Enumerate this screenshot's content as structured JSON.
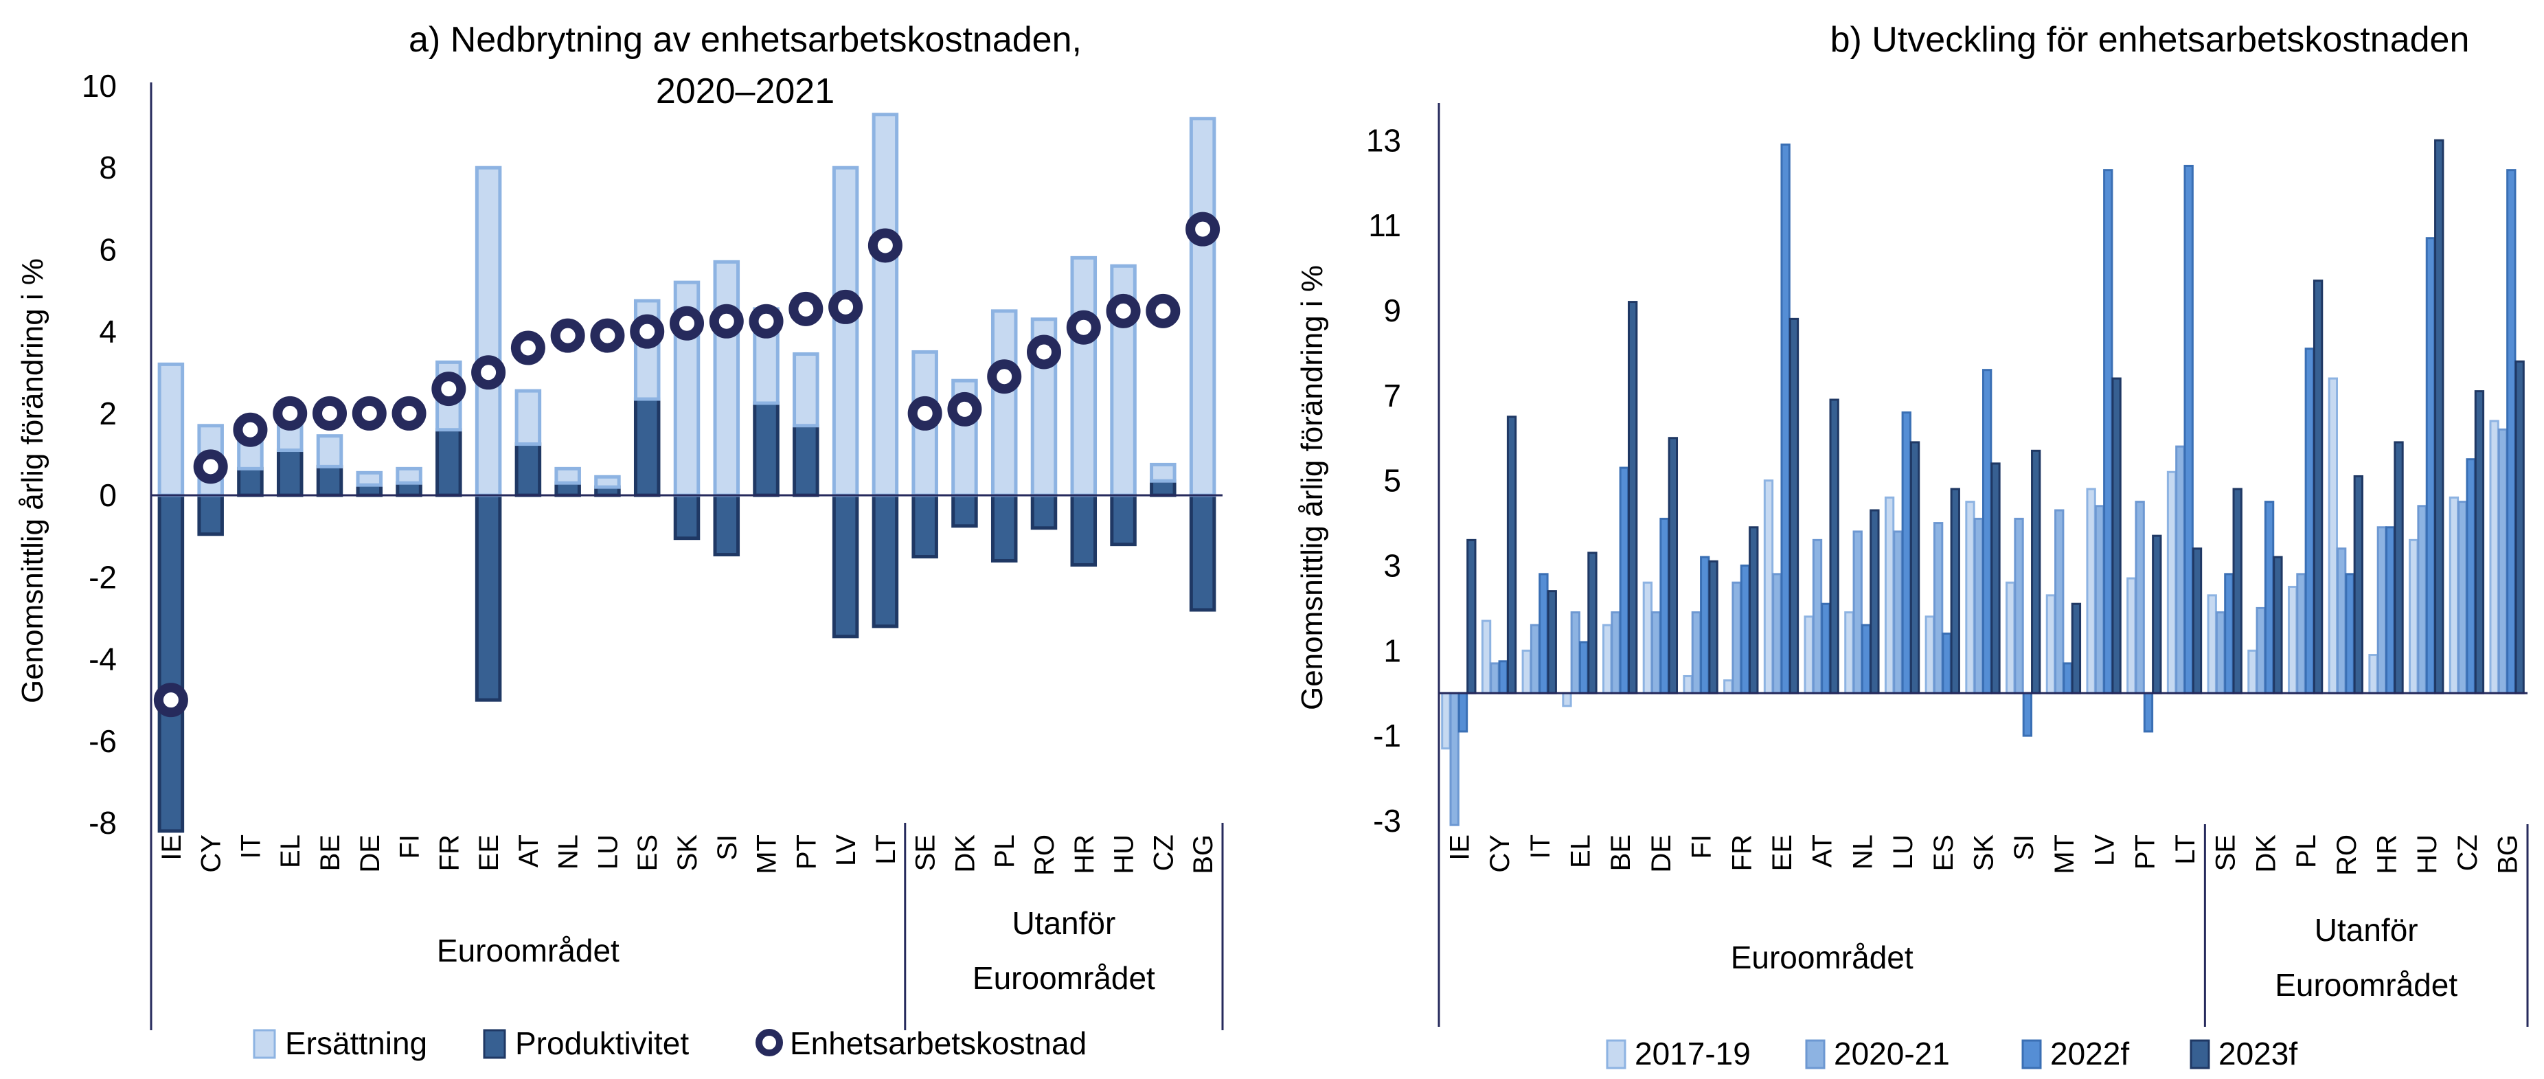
{
  "chart_data": [
    {
      "type": "bar",
      "subtype": "stacked-bar-with-markers",
      "title": "a) Nedbrytning av enhetsarbetskostnaden, 2020–2021",
      "title_lines": [
        "a) Nedbrytning av enhetsarbetskostnaden,",
        "2020–2021"
      ],
      "xlabel": "",
      "ylabel": "Genomsnittlig årlig förändring i %",
      "ylim": [
        -8,
        10
      ],
      "yticks": [
        -8,
        -6,
        -4,
        -2,
        0,
        2,
        4,
        6,
        8,
        10
      ],
      "ytick_labels": [
        "-8",
        "-6",
        "-4",
        "-2",
        "0",
        "2",
        "4",
        "6",
        "8",
        "10"
      ],
      "grid": false,
      "categories": [
        "IE",
        "CY",
        "IT",
        "EL",
        "BE",
        "DE",
        "FI",
        "FR",
        "EE",
        "AT",
        "NL",
        "LU",
        "ES",
        "SK",
        "SI",
        "MT",
        "PT",
        "LV",
        "LT",
        "SE",
        "DK",
        "PL",
        "RO",
        "HR",
        "HU",
        "CZ",
        "BG"
      ],
      "groups": [
        {
          "label": "Euroområdet",
          "label_lines": [
            "Euroområdet"
          ],
          "count": 19
        },
        {
          "label": "Utanför Euroområdet",
          "label_lines": [
            "Utanför",
            "Euroområdet"
          ],
          "count": 8
        }
      ],
      "series": [
        {
          "name": "Ersättning",
          "kind": "bar",
          "color": "#c6d9f1",
          "edge": "#8db3e2",
          "values": [
            3.2,
            1.7,
            0.7,
            1.1,
            0.75,
            0.3,
            0.35,
            1.65,
            8.0,
            1.3,
            0.35,
            0.25,
            2.4,
            5.2,
            5.7,
            2.3,
            1.75,
            8.0,
            9.3,
            3.5,
            2.8,
            4.5,
            4.3,
            5.8,
            5.6,
            0.4,
            9.2
          ]
        },
        {
          "name": "Produktivitet",
          "kind": "bar",
          "color": "#376092",
          "edge": "#1f3864",
          "values": [
            -8.2,
            -0.95,
            0.65,
            1.1,
            0.7,
            0.25,
            0.3,
            1.6,
            -5.0,
            1.25,
            0.3,
            0.2,
            2.35,
            -1.05,
            -1.45,
            2.25,
            1.7,
            -3.45,
            -3.2,
            -1.5,
            -0.75,
            -1.6,
            -0.8,
            -1.7,
            -1.2,
            0.35,
            -2.8
          ]
        },
        {
          "name": "Enhetsarbetskostnad",
          "kind": "marker",
          "color": "#262a5c",
          "values": [
            -5.0,
            0.7,
            1.6,
            2.0,
            2.0,
            2.0,
            2.0,
            2.6,
            3.0,
            3.6,
            3.9,
            3.9,
            4.0,
            4.2,
            4.25,
            4.25,
            4.55,
            4.6,
            6.1,
            2.0,
            2.1,
            2.9,
            3.5,
            4.1,
            4.5,
            4.5,
            6.5
          ]
        }
      ],
      "legend": [
        "Ersättning",
        "Produktivitet",
        "Enhetsarbetskostnad"
      ],
      "legend_position": "bottom"
    },
    {
      "type": "bar",
      "subtype": "grouped-bar",
      "title": "b) Utveckling för enhetsarbetskostnaden",
      "title_lines": [
        "b) Utveckling för enhetsarbetskostnaden"
      ],
      "xlabel": "",
      "ylabel": "Genomsnittlig årlig förändring i %",
      "ylim": [
        -3,
        14.2
      ],
      "yticks": [
        -3,
        -1,
        1,
        3,
        5,
        7,
        9,
        11,
        13
      ],
      "ytick_labels": [
        "-3",
        "-1",
        "1",
        "3",
        "5",
        "7",
        "9",
        "11",
        "13"
      ],
      "grid": false,
      "categories": [
        "IE",
        "CY",
        "IT",
        "EL",
        "BE",
        "DE",
        "FI",
        "FR",
        "EE",
        "AT",
        "NL",
        "LU",
        "ES",
        "SK",
        "SI",
        "MT",
        "LV",
        "PT",
        "LT",
        "SE",
        "DK",
        "PL",
        "RO",
        "HR",
        "HU",
        "CZ",
        "BG"
      ],
      "groups": [
        {
          "label": "Euroområdet",
          "label_lines": [
            "Euroområdet"
          ],
          "count": 19
        },
        {
          "label": "Utanför Euroområdet",
          "label_lines": [
            "Utanför",
            "Euroområdet"
          ],
          "count": 8
        }
      ],
      "series": [
        {
          "name": "2017-19",
          "color": "#c6d9f1",
          "edge": "#8db3e2",
          "values": [
            -1.3,
            1.7,
            1.0,
            -0.3,
            1.6,
            2.6,
            0.4,
            0.3,
            5.0,
            1.8,
            1.9,
            4.6,
            1.8,
            4.5,
            2.6,
            2.3,
            4.8,
            2.7,
            5.2,
            2.3,
            1.0,
            2.5,
            7.4,
            0.9,
            3.6,
            4.6,
            6.4
          ]
        },
        {
          "name": "2020-21",
          "color": "#8db3e2",
          "edge": "#6d98d2",
          "values": [
            -3.1,
            0.7,
            1.6,
            1.9,
            1.9,
            1.9,
            1.9,
            2.6,
            2.8,
            3.6,
            3.8,
            3.8,
            4.0,
            4.1,
            4.1,
            4.3,
            4.4,
            4.5,
            5.8,
            1.9,
            2.0,
            2.8,
            3.4,
            3.9,
            4.4,
            4.5,
            6.2
          ]
        },
        {
          "name": "2022f",
          "color": "#558ed5",
          "edge": "#3a6fb4",
          "values": [
            -0.9,
            0.75,
            2.8,
            1.2,
            5.3,
            4.1,
            3.2,
            3.0,
            12.9,
            2.1,
            1.6,
            6.6,
            1.4,
            7.6,
            -1.0,
            0.7,
            12.3,
            -0.9,
            12.4,
            2.8,
            4.5,
            8.1,
            2.8,
            3.9,
            10.7,
            5.5,
            12.3
          ]
        },
        {
          "name": "2023f",
          "color": "#376092",
          "edge": "#1f3864",
          "values": [
            3.6,
            6.5,
            2.4,
            3.3,
            9.2,
            6.0,
            3.1,
            3.9,
            8.8,
            6.9,
            4.3,
            5.9,
            4.8,
            5.4,
            5.7,
            2.1,
            7.4,
            3.7,
            3.4,
            4.8,
            3.2,
            9.7,
            5.1,
            5.9,
            13.0,
            7.1,
            7.8
          ]
        }
      ],
      "legend": [
        "2017-19",
        "2020-21",
        "2022f",
        "2023f"
      ],
      "legend_position": "bottom"
    }
  ]
}
